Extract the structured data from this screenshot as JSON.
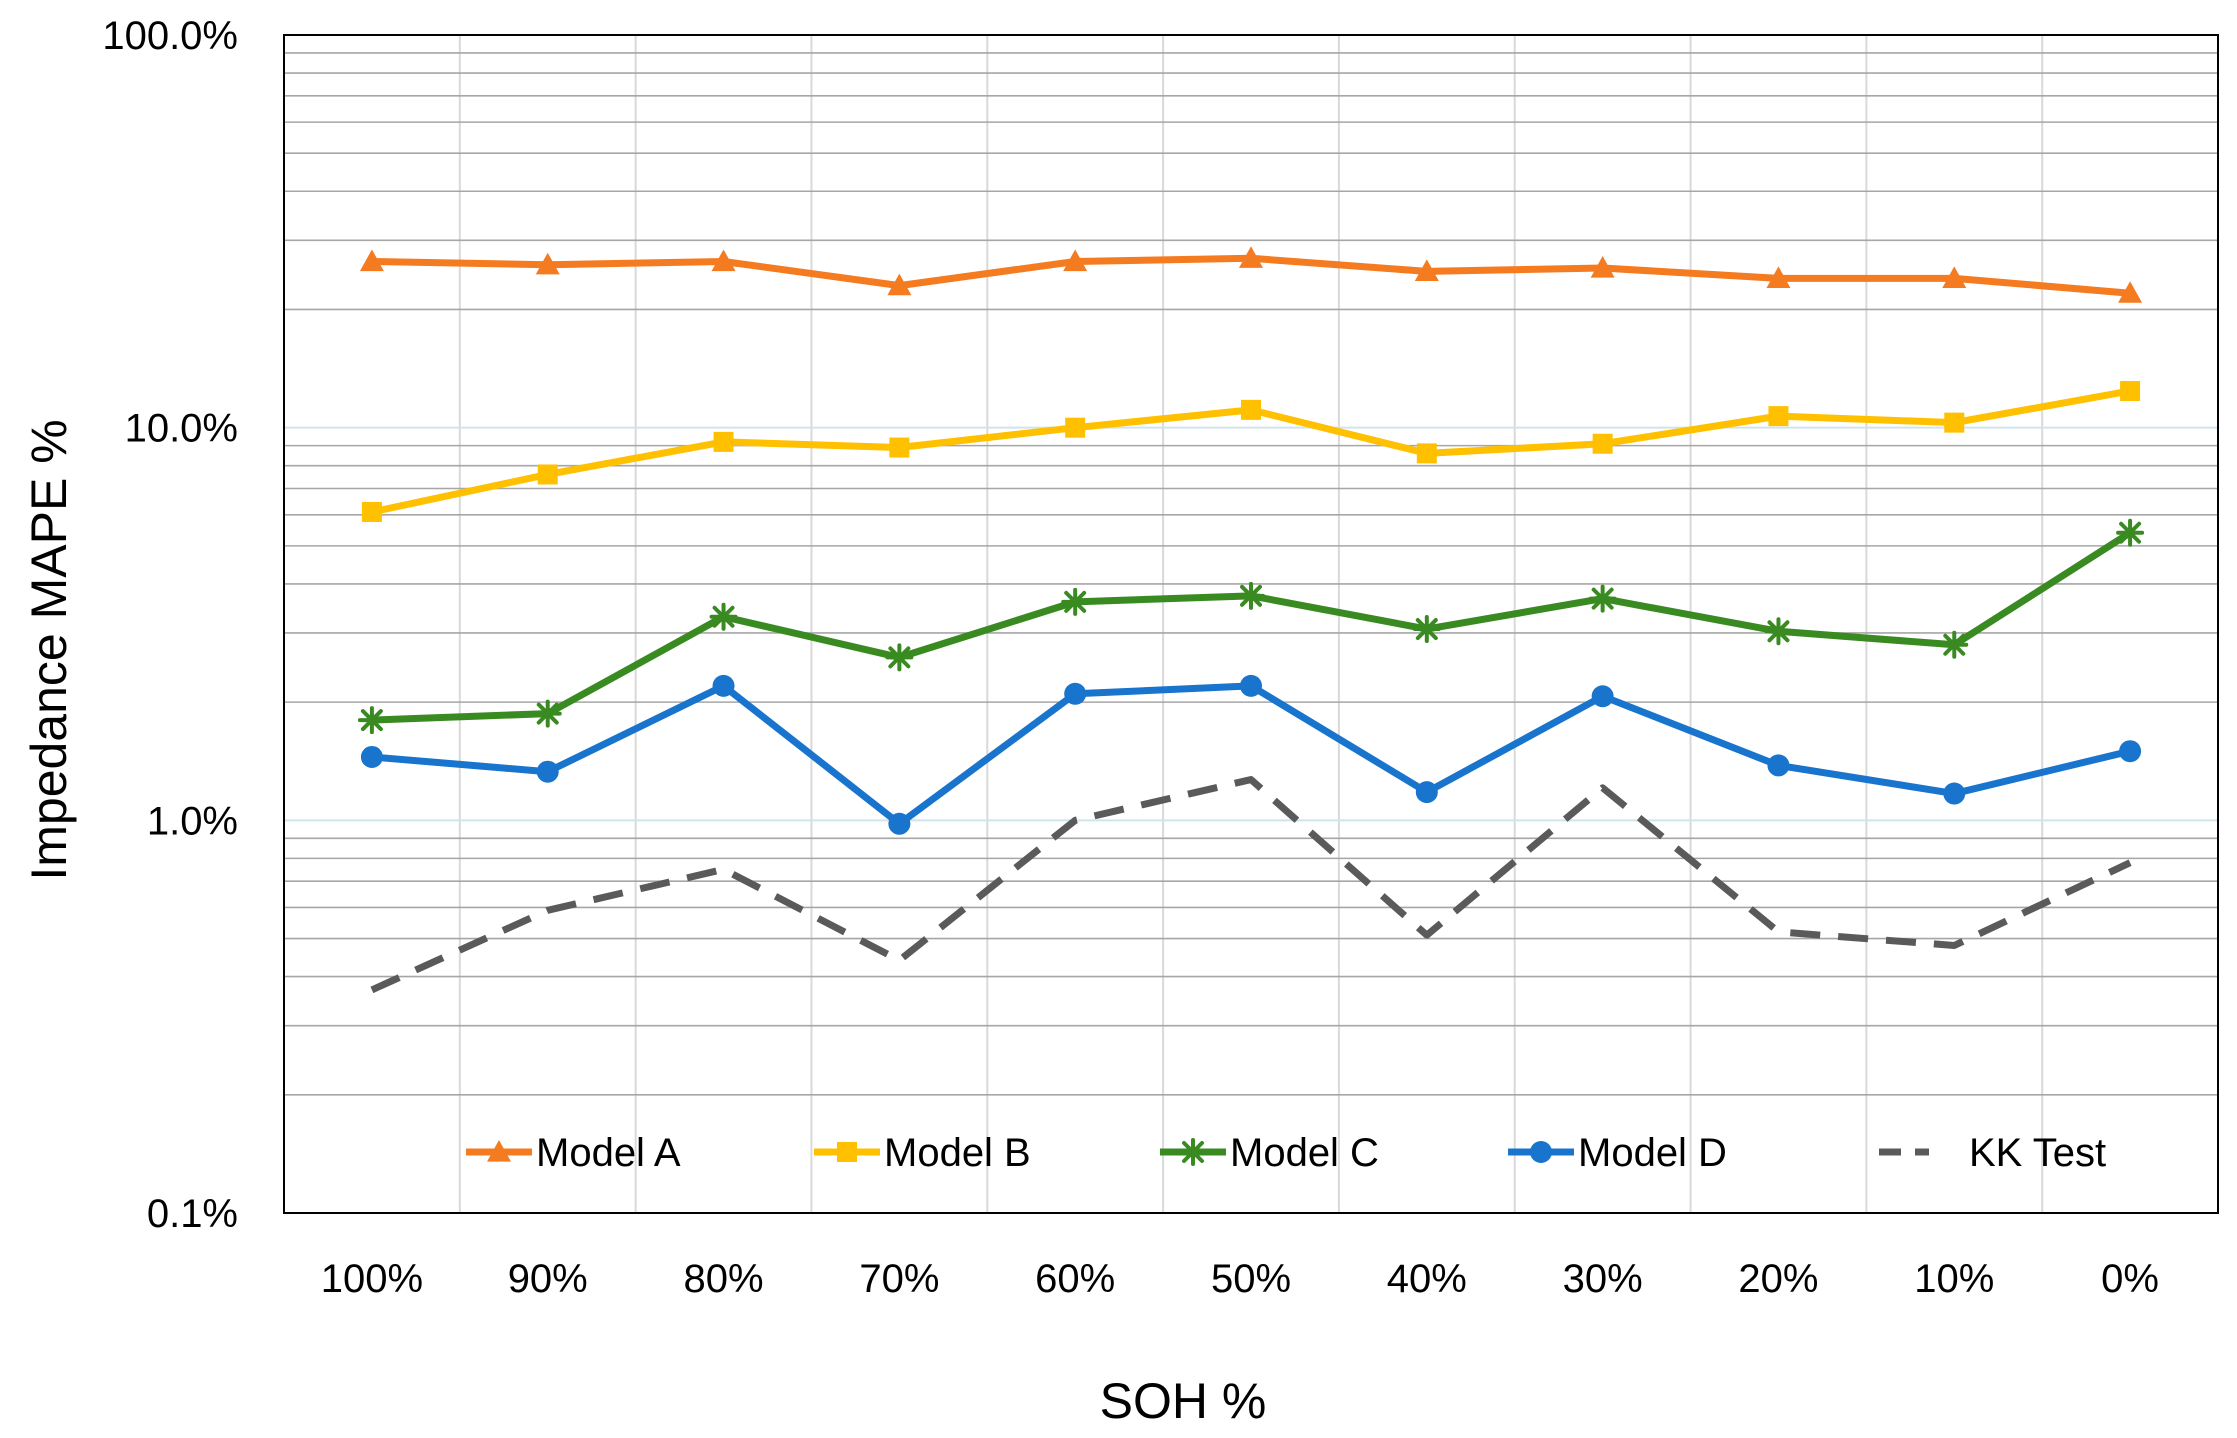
{
  "chart_data": {
    "type": "line",
    "title": "",
    "xlabel": "SOH %",
    "ylabel": "Impedance MAPE %",
    "yscale": "log",
    "ylim": [
      0.1,
      100
    ],
    "yticks": [
      0.1,
      1,
      10,
      100
    ],
    "ytick_labels": [
      "0.1%",
      "1.0%",
      "10.0%",
      "100.0%"
    ],
    "categories": [
      "100%",
      "90%",
      "80%",
      "70%",
      "60%",
      "50%",
      "40%",
      "30%",
      "20%",
      "10%",
      "0%"
    ],
    "legend_position": "bottom-inside",
    "grid": true,
    "series": [
      {
        "name": "Model A",
        "color": "#F47B20",
        "marker": "triangle",
        "dash": false,
        "values": [
          26.5,
          26.0,
          26.5,
          23.0,
          26.5,
          27.0,
          25.0,
          25.5,
          24.0,
          24.0,
          22.0
        ]
      },
      {
        "name": "Model B",
        "color": "#FFC000",
        "marker": "square",
        "dash": false,
        "values": [
          6.1,
          7.6,
          9.2,
          8.9,
          10.0,
          11.1,
          8.6,
          9.1,
          10.7,
          10.3,
          12.4
        ]
      },
      {
        "name": "Model C",
        "color": "#3A8A22",
        "marker": "asterisk",
        "dash": false,
        "values": [
          1.8,
          1.87,
          3.3,
          2.6,
          3.6,
          3.73,
          3.07,
          3.67,
          3.03,
          2.8,
          5.4
        ]
      },
      {
        "name": "Model D",
        "color": "#1874CD",
        "marker": "circle",
        "dash": false,
        "values": [
          1.45,
          1.33,
          2.2,
          0.98,
          2.1,
          2.2,
          1.18,
          2.07,
          1.38,
          1.17,
          1.5
        ]
      },
      {
        "name": "KK Test",
        "color": "#5A5A5A",
        "marker": "none",
        "dash": true,
        "values": [
          0.37,
          0.59,
          0.75,
          0.44,
          1.0,
          1.27,
          0.51,
          1.21,
          0.52,
          0.48,
          0.78
        ]
      }
    ]
  }
}
